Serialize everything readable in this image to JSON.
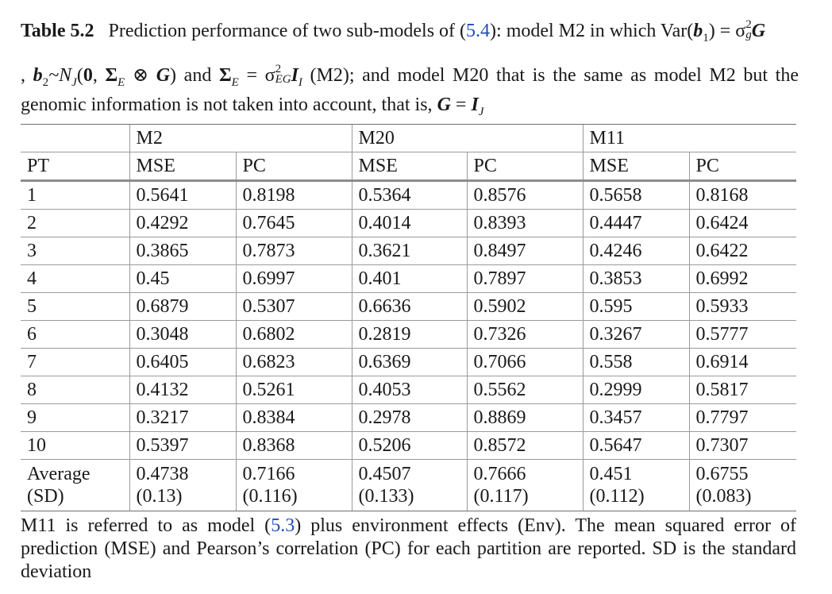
{
  "caption": {
    "label": "Table 5.2",
    "line1_text": "Prediction performance of two sub-models of (",
    "ref_eq": "5.4",
    "line1_after_ref": "): model M2 in which Var(",
    "b": "b",
    "sub_1": "1",
    "eq_part": ") = σ",
    "sup_2": "2",
    "sub_g": "g",
    "G": "G",
    "line2_start": ", ",
    "b2": "b",
    "sub_2": "2",
    "tilde_N": "~N",
    "sub_J": "J",
    "open_paren": "(",
    "zero": "0",
    "comma": ", ",
    "Sigma": "Σ",
    "sub_E": "E",
    "otimes": " ⊗ ",
    "close_paren": ") and ",
    "equals_sigma": " = σ",
    "sub_EG": "EG",
    "I_bold": "I",
    "sub_I": "I",
    "line2_end": " (M2); and model M20 that is the same as model M2 but the",
    "line3_text": "genomic information is not taken into account, that is, ",
    "equals": " = ",
    "sub_J_again": "J"
  },
  "table": {
    "model_headers": [
      "M2",
      "M20",
      "M11"
    ],
    "col_headers": [
      "PT",
      "MSE",
      "PC",
      "MSE",
      "PC",
      "MSE",
      "PC"
    ],
    "rows": [
      [
        "1",
        "0.5641",
        "0.8198",
        "0.5364",
        "0.8576",
        "0.5658",
        "0.8168"
      ],
      [
        "2",
        "0.4292",
        "0.7645",
        "0.4014",
        "0.8393",
        "0.4447",
        "0.6424"
      ],
      [
        "3",
        "0.3865",
        "0.7873",
        "0.3621",
        "0.8497",
        "0.4246",
        "0.6422"
      ],
      [
        "4",
        "0.45",
        "0.6997",
        "0.401",
        "0.7897",
        "0.3853",
        "0.6992"
      ],
      [
        "5",
        "0.6879",
        "0.5307",
        "0.6636",
        "0.5902",
        "0.595",
        "0.5933"
      ],
      [
        "6",
        "0.3048",
        "0.6802",
        "0.2819",
        "0.7326",
        "0.3267",
        "0.5777"
      ],
      [
        "7",
        "0.6405",
        "0.6823",
        "0.6369",
        "0.7066",
        "0.558",
        "0.6914"
      ],
      [
        "8",
        "0.4132",
        "0.5261",
        "0.4053",
        "0.5562",
        "0.2999",
        "0.5817"
      ],
      [
        "9",
        "0.3217",
        "0.8384",
        "0.2978",
        "0.8869",
        "0.3457",
        "0.7797"
      ],
      [
        "10",
        "0.5397",
        "0.8368",
        "0.5206",
        "0.8572",
        "0.5647",
        "0.7307"
      ]
    ],
    "average_row": {
      "label_line1": "Average",
      "label_line2": "(SD)",
      "means": [
        "0.4738",
        "0.7166",
        "0.4507",
        "0.7666",
        "0.451",
        "0.6755"
      ],
      "sds": [
        "(0.13)",
        "(0.116)",
        "(0.133)",
        "(0.117)",
        "(0.112)",
        "(0.083)"
      ]
    }
  },
  "footnote": {
    "line1_before": "M11 is referred to as model (",
    "ref_eq": "5.3",
    "line1_after": ") plus environment effects (Env). The mean squared error of",
    "line2": "prediction (MSE) and Pearson’s correlation (PC) for each partition are reported. SD is the standard",
    "line3": "deviation"
  },
  "colors": {
    "link": "#1f4db8",
    "text": "#1a1a1a",
    "rule": "#9a9a9a"
  }
}
